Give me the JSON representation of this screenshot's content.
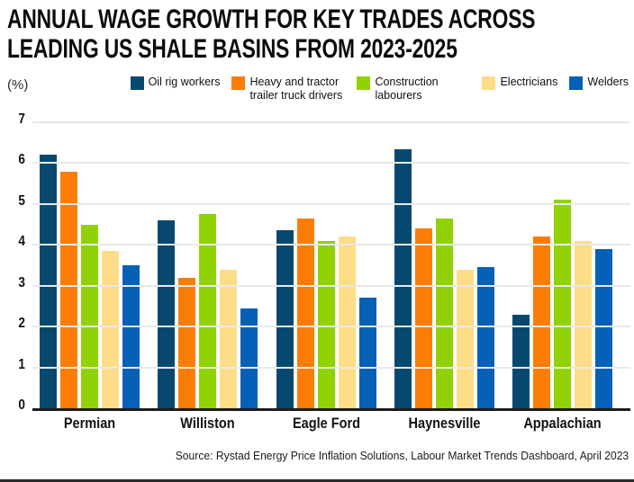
{
  "title": {
    "line1": "ANNUAL WAGE GROWTH FOR KEY TRADES ACROSS",
    "line2": "LEADING US SHALE BASINS FROM 2023-2025"
  },
  "y_axis_unit": "(%)",
  "source": "Source: Rystad Energy Price Inflation Solutions, Labour Market Trends Dashboard, April 2023",
  "colors": {
    "oil_rig_workers": "#07496E",
    "truck_drivers": "#FC7D05",
    "construction_labourers": "#90D204",
    "electricians": "#FEDD88",
    "welders": "#0661B6",
    "gridline": "#e9e9e9",
    "axis_line": "#1c1c1c"
  },
  "chart_data": {
    "type": "bar",
    "title": "Annual wage growth for key trades across leading US shale basins from 2023-2025",
    "ylabel": "(%)",
    "xlabel": "",
    "ylim": [
      0,
      7
    ],
    "yticks": [
      0,
      1,
      2,
      3,
      4,
      5,
      6,
      7
    ],
    "grid": true,
    "legend_position": "top",
    "categories": [
      "Permian",
      "Williston",
      "Eagle Ford",
      "Haynesville",
      "Appalachian"
    ],
    "series": [
      {
        "name": "Oil rig workers",
        "color": "#07496E",
        "values": [
          6.2,
          4.6,
          4.35,
          6.35,
          2.3
        ]
      },
      {
        "name": "Heavy and tractor trailer truck drivers",
        "color": "#FC7D05",
        "values": [
          5.8,
          3.2,
          4.65,
          4.4,
          4.2
        ]
      },
      {
        "name": "Construction labourers",
        "color": "#90D204",
        "values": [
          4.5,
          4.75,
          4.1,
          4.65,
          5.1
        ]
      },
      {
        "name": "Electricians",
        "color": "#FEDD88",
        "values": [
          3.85,
          3.4,
          4.2,
          3.4,
          4.1
        ]
      },
      {
        "name": "Welders",
        "color": "#0661B6",
        "values": [
          3.5,
          2.45,
          2.7,
          3.45,
          3.9
        ]
      }
    ]
  }
}
